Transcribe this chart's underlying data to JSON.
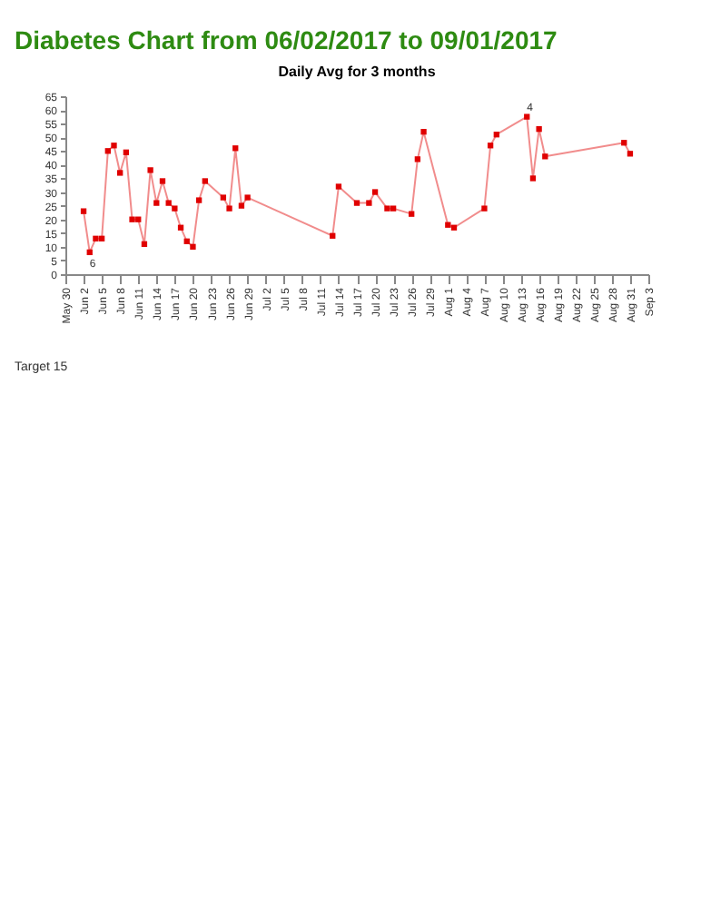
{
  "chart_data": {
    "type": "line",
    "title": "Diabetes Chart from 06/02/2017 to 09/01/2017",
    "subtitle": "Daily Avg for 3 months",
    "x": [
      "2017-06-02",
      "2017-06-03",
      "2017-06-04",
      "2017-06-05",
      "2017-06-06",
      "2017-06-07",
      "2017-06-08",
      "2017-06-09",
      "2017-06-10",
      "2017-06-11",
      "2017-06-12",
      "2017-06-13",
      "2017-06-14",
      "2017-06-15",
      "2017-06-16",
      "2017-06-17",
      "2017-06-18",
      "2017-06-19",
      "2017-06-20",
      "2017-06-21",
      "2017-06-22",
      "2017-06-25",
      "2017-06-26",
      "2017-06-27",
      "2017-06-28",
      "2017-06-29",
      "2017-07-13",
      "2017-07-14",
      "2017-07-17",
      "2017-07-19",
      "2017-07-20",
      "2017-07-22",
      "2017-07-23",
      "2017-07-26",
      "2017-07-27",
      "2017-07-28",
      "2017-08-01",
      "2017-08-02",
      "2017-08-07",
      "2017-08-08",
      "2017-08-09",
      "2017-08-14",
      "2017-08-15",
      "2017-08-16",
      "2017-08-17",
      "2017-08-30",
      "2017-08-31"
    ],
    "series": [
      {
        "color": "#e00000",
        "values": [
          23,
          8,
          13,
          13,
          45,
          47,
          37,
          44.5,
          20,
          20,
          11,
          38,
          26,
          34,
          26,
          24,
          17,
          12,
          10,
          27,
          34,
          28,
          24,
          46,
          25,
          28,
          14,
          32,
          26,
          26,
          30,
          24,
          24,
          22,
          42,
          52,
          18,
          17,
          24,
          47,
          51,
          57.5,
          35,
          53,
          43,
          48,
          44
        ]
      }
    ],
    "xlim": [
      "2017-05-30",
      "2017-09-03"
    ],
    "xticks": [
      {
        "value": "2017-05-30",
        "label": "May 30"
      },
      {
        "value": "2017-06-02",
        "label": "Jun 2"
      },
      {
        "value": "2017-06-05",
        "label": "Jun 5"
      },
      {
        "value": "2017-06-08",
        "label": "Jun 8"
      },
      {
        "value": "2017-06-11",
        "label": "Jun 11"
      },
      {
        "value": "2017-06-14",
        "label": "Jun 14"
      },
      {
        "value": "2017-06-17",
        "label": "Jun 17"
      },
      {
        "value": "2017-06-20",
        "label": "Jun 20"
      },
      {
        "value": "2017-06-23",
        "label": "Jun 23"
      },
      {
        "value": "2017-06-26",
        "label": "Jun 26"
      },
      {
        "value": "2017-06-29",
        "label": "Jun 29"
      },
      {
        "value": "2017-07-02",
        "label": "Jul 2"
      },
      {
        "value": "2017-07-05",
        "label": "Jul 5"
      },
      {
        "value": "2017-07-08",
        "label": "Jul 8"
      },
      {
        "value": "2017-07-11",
        "label": "Jul 11"
      },
      {
        "value": "2017-07-14",
        "label": "Jul 14"
      },
      {
        "value": "2017-07-17",
        "label": "Jul 17"
      },
      {
        "value": "2017-07-20",
        "label": "Jul 20"
      },
      {
        "value": "2017-07-23",
        "label": "Jul 23"
      },
      {
        "value": "2017-07-26",
        "label": "Jul 26"
      },
      {
        "value": "2017-07-29",
        "label": "Jul 29"
      },
      {
        "value": "2017-08-01",
        "label": "Aug 1"
      },
      {
        "value": "2017-08-04",
        "label": "Aug 4"
      },
      {
        "value": "2017-08-07",
        "label": "Aug 7"
      },
      {
        "value": "2017-08-10",
        "label": "Aug 10"
      },
      {
        "value": "2017-08-13",
        "label": "Aug 13"
      },
      {
        "value": "2017-08-16",
        "label": "Aug 16"
      },
      {
        "value": "2017-08-19",
        "label": "Aug 19"
      },
      {
        "value": "2017-08-22",
        "label": "Aug 22"
      },
      {
        "value": "2017-08-25",
        "label": "Aug 25"
      },
      {
        "value": "2017-08-28",
        "label": "Aug 28"
      },
      {
        "value": "2017-08-31",
        "label": "Aug 31"
      },
      {
        "value": "2017-09-03",
        "label": "Sep 3"
      }
    ],
    "ylim": [
      0,
      65
    ],
    "yticks": [
      0,
      5,
      10,
      15,
      20,
      25,
      30,
      35,
      40,
      45,
      50,
      55,
      60,
      65
    ],
    "annotations": [
      "Target 15",
      {
        "text": "6",
        "x": "2017-06-03",
        "y": 4
      },
      {
        "text": "4",
        "x": "2017-08-14",
        "y": 61
      }
    ],
    "marker": "square",
    "grid": false
  }
}
